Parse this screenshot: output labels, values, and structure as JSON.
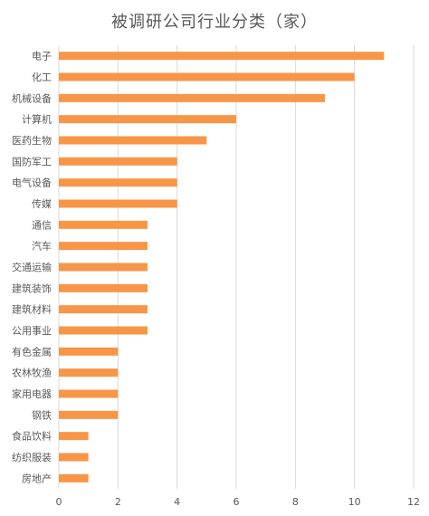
{
  "chart_data": {
    "type": "bar",
    "orientation": "horizontal",
    "title": "被调研公司行业分类（家）",
    "categories": [
      "电子",
      "化工",
      "机械设备",
      "计算机",
      "医药生物",
      "国防军工",
      "电气设备",
      "传媒",
      "通信",
      "汽车",
      "交通运输",
      "建筑装饰",
      "建筑材料",
      "公用事业",
      "有色金属",
      "农林牧渔",
      "家用电器",
      "钢铁",
      "食品饮料",
      "纺织服装",
      "房地产"
    ],
    "values": [
      11,
      10,
      9,
      6,
      5,
      4,
      4,
      4,
      3,
      3,
      3,
      3,
      3,
      3,
      2,
      2,
      2,
      2,
      1,
      1,
      1
    ],
    "xlim": [
      0,
      12
    ],
    "xticks": [
      0,
      2,
      4,
      6,
      8,
      10,
      12
    ],
    "grid": true,
    "legend": "none",
    "bar_color": "#F79646",
    "grid_color": "#D9D9D9",
    "text_color": "#595959"
  }
}
